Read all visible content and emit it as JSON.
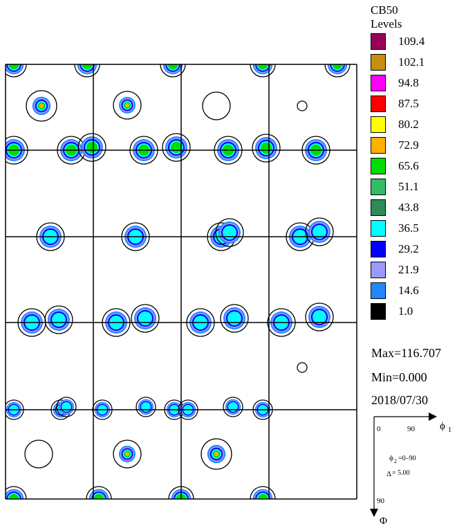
{
  "legend": {
    "title": "CB50",
    "subtitle": "Levels",
    "levels": [
      {
        "label": "109.4",
        "color": "#99005a"
      },
      {
        "label": "102.1",
        "color": "#c98d10"
      },
      {
        "label": "94.8",
        "color": "#ff00ff"
      },
      {
        "label": "87.5",
        "color": "#ff0000"
      },
      {
        "label": "80.2",
        "color": "#ffff00"
      },
      {
        "label": "72.9",
        "color": "#ffb000"
      },
      {
        "label": "65.6",
        "color": "#00dd00"
      },
      {
        "label": "51.1",
        "color": "#33bb66"
      },
      {
        "label": "43.8",
        "color": "#2e8b57"
      },
      {
        "label": "36.5",
        "color": "#00ffff"
      },
      {
        "label": "29.2",
        "color": "#0000ff"
      },
      {
        "label": "21.9",
        "color": "#9999ff"
      },
      {
        "label": "14.6",
        "color": "#2288ff"
      },
      {
        "label": "1.0",
        "color": "#000000"
      }
    ]
  },
  "stats": {
    "max": "Max=116.707",
    "min": "Min=0.000",
    "date": "2018/07/30"
  },
  "key": {
    "x_start": "0",
    "x_end": "90",
    "x_symbol": "ϕ",
    "x_sub": "1",
    "phi2_symbol": "ϕ",
    "phi2_sub": "2",
    "phi2_text": "=0–90",
    "delta_symbol": "Δ",
    "delta_text": "= 5.00",
    "y_end": "90",
    "y_symbol": "Φ"
  }
}
